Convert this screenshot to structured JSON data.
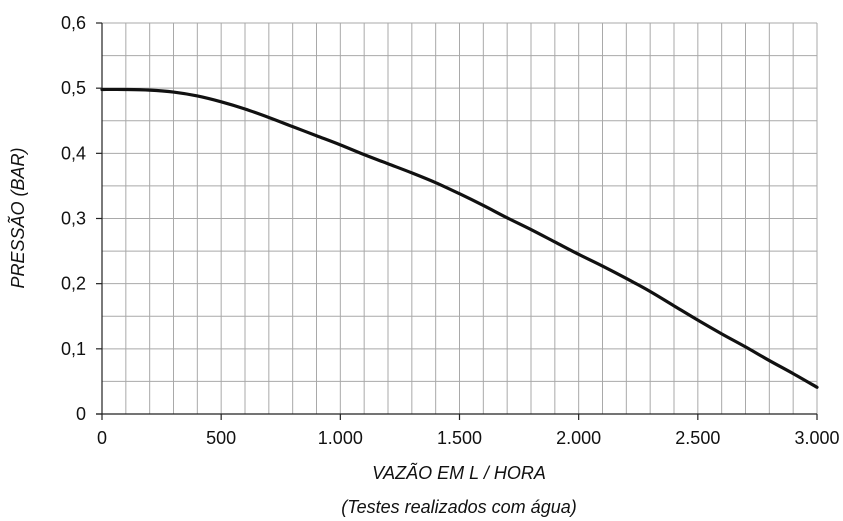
{
  "chart_data": {
    "type": "line",
    "xlabel": "VAZÃO EM L / HORA",
    "xlabel_note": "(Testes realizados com água)",
    "ylabel": "PRESSÃO  (BAR)",
    "xlim": [
      0,
      3000
    ],
    "ylim": [
      0,
      0.6
    ],
    "x_ticks": [
      0,
      500,
      1000,
      1500,
      2000,
      2500,
      3000
    ],
    "x_tick_labels": [
      "0",
      "500",
      "1.000",
      "1.500",
      "2.000",
      "2.500",
      "3.000"
    ],
    "y_ticks": [
      0,
      0.1,
      0.2,
      0.3,
      0.4,
      0.5,
      0.6
    ],
    "y_tick_labels": [
      "0",
      "0,1",
      "0,2",
      "0,3",
      "0,4",
      "0,5",
      "0,6"
    ],
    "grid": true,
    "x_minor_step": 100,
    "y_minor_step": 0.05,
    "series": [
      {
        "color": "#111111",
        "x": [
          0,
          100,
          200,
          300,
          400,
          500,
          600,
          700,
          800,
          900,
          1000,
          1100,
          1200,
          1300,
          1400,
          1500,
          1600,
          1700,
          1800,
          1900,
          2000,
          2100,
          2200,
          2300,
          2400,
          2500,
          2600,
          2700,
          2800,
          2900,
          3000
        ],
        "y": [
          0.498,
          0.498,
          0.497,
          0.494,
          0.488,
          0.479,
          0.468,
          0.455,
          0.441,
          0.427,
          0.413,
          0.398,
          0.384,
          0.37,
          0.355,
          0.338,
          0.32,
          0.301,
          0.283,
          0.264,
          0.245,
          0.227,
          0.208,
          0.188,
          0.166,
          0.144,
          0.123,
          0.103,
          0.082,
          0.062,
          0.041
        ]
      }
    ]
  }
}
